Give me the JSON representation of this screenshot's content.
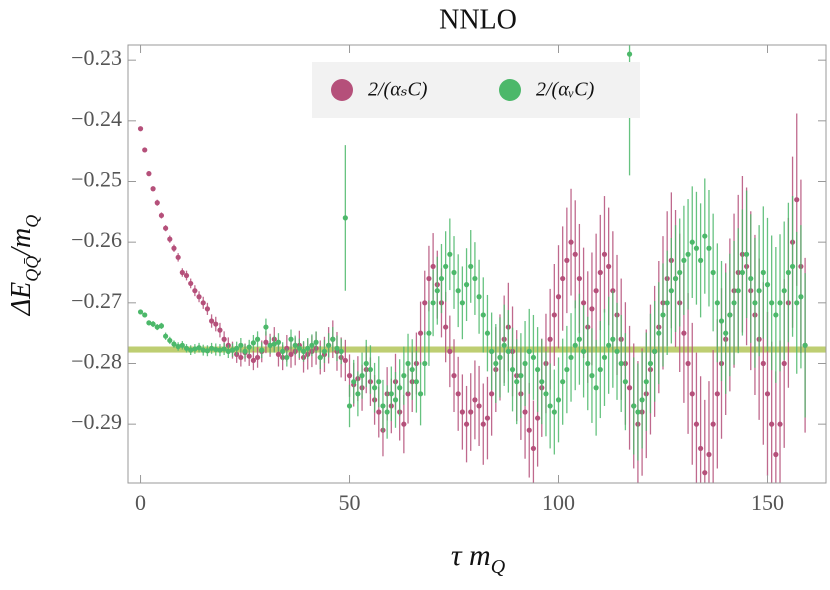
{
  "chart_data": {
    "type": "errorbar-scatter",
    "title": "NNLO",
    "xlabel_parts": [
      "τ m",
      "Q"
    ],
    "ylabel_parts": [
      "ΔE",
      "QQ̄",
      "/m",
      "Q"
    ],
    "xlim": [
      -3,
      164
    ],
    "ylim": [
      -0.2997,
      -0.2275
    ],
    "xticks": [
      0,
      50,
      100,
      150
    ],
    "yticks": [
      {
        "value": -0.29,
        "label": "−0.29"
      },
      {
        "value": -0.28,
        "label": "−0.28"
      },
      {
        "value": -0.27,
        "label": "−0.27"
      },
      {
        "value": -0.26,
        "label": "−0.26"
      },
      {
        "value": -0.25,
        "label": "−0.25"
      },
      {
        "value": -0.24,
        "label": "−0.24"
      },
      {
        "value": -0.23,
        "label": "−0.23"
      }
    ],
    "band": {
      "range": [
        -0.2782,
        -0.2772
      ],
      "color": "#b3c659"
    },
    "legend": "top",
    "x": [
      0,
      1,
      2,
      3,
      4,
      5,
      6,
      7,
      8,
      9,
      10,
      11,
      12,
      13,
      14,
      15,
      16,
      17,
      18,
      19,
      20,
      21,
      22,
      23,
      24,
      25,
      26,
      27,
      28,
      29,
      30,
      31,
      32,
      33,
      34,
      35,
      36,
      37,
      38,
      39,
      40,
      41,
      42,
      43,
      44,
      45,
      46,
      47,
      48,
      49,
      50,
      51,
      52,
      53,
      54,
      55,
      56,
      57,
      58,
      59,
      60,
      61,
      62,
      63,
      64,
      65,
      66,
      67,
      68,
      69,
      70,
      71,
      72,
      73,
      74,
      75,
      76,
      77,
      78,
      79,
      80,
      81,
      82,
      83,
      84,
      85,
      86,
      87,
      88,
      89,
      90,
      91,
      92,
      93,
      94,
      95,
      96,
      97,
      98,
      99,
      100,
      101,
      102,
      103,
      104,
      105,
      106,
      107,
      108,
      109,
      110,
      111,
      112,
      113,
      114,
      115,
      116,
      117,
      118,
      119,
      120,
      121,
      122,
      123,
      124,
      125,
      126,
      127,
      128,
      129,
      130,
      131,
      132,
      133,
      134,
      135,
      136,
      137,
      138,
      139,
      140,
      141,
      142,
      143,
      144,
      145,
      146,
      147,
      148,
      149,
      150,
      151,
      152,
      153,
      154,
      155,
      156,
      157,
      158,
      159
    ],
    "series": [
      {
        "name": "2/(αₛC)",
        "color": "#b5507a",
        "values": [
          -0.2413,
          -0.2448,
          -0.2487,
          -0.2512,
          -0.2535,
          -0.2556,
          -0.2577,
          -0.2595,
          -0.261,
          -0.2625,
          -0.265,
          -0.2655,
          -0.2668,
          -0.268,
          -0.269,
          -0.27,
          -0.271,
          -0.273,
          -0.2735,
          -0.2745,
          -0.276,
          -0.277,
          -0.2778,
          -0.2785,
          -0.279,
          -0.2782,
          -0.2788,
          -0.2795,
          -0.279,
          -0.278,
          -0.2765,
          -0.277,
          -0.276,
          -0.2785,
          -0.279,
          -0.2775,
          -0.2785,
          -0.278,
          -0.277,
          -0.279,
          -0.2785,
          -0.278,
          -0.2775,
          -0.279,
          -0.2785,
          -0.277,
          -0.276,
          -0.278,
          -0.279,
          -0.2795,
          -0.282,
          -0.2835,
          -0.2825,
          -0.284,
          -0.281,
          -0.283,
          -0.286,
          -0.288,
          -0.291,
          -0.285,
          -0.287,
          -0.283,
          -0.288,
          -0.29,
          -0.285,
          -0.283,
          -0.28,
          -0.275,
          -0.27,
          -0.266,
          -0.264,
          -0.267,
          -0.27,
          -0.274,
          -0.278,
          -0.282,
          -0.285,
          -0.288,
          -0.29,
          -0.288,
          -0.286,
          -0.287,
          -0.29,
          -0.289,
          -0.285,
          -0.281,
          -0.279,
          -0.276,
          -0.274,
          -0.278,
          -0.282,
          -0.285,
          -0.288,
          -0.291,
          -0.294,
          -0.289,
          -0.284,
          -0.28,
          -0.276,
          -0.272,
          -0.269,
          -0.266,
          -0.263,
          -0.26,
          -0.262,
          -0.266,
          -0.27,
          -0.274,
          -0.271,
          -0.268,
          -0.265,
          -0.262,
          -0.264,
          -0.268,
          -0.272,
          -0.276,
          -0.28,
          -0.284,
          -0.287,
          -0.29,
          -0.288,
          -0.285,
          -0.281,
          -0.278,
          -0.274,
          -0.27,
          -0.266,
          -0.263,
          -0.266,
          -0.27,
          -0.275,
          -0.28,
          -0.285,
          -0.29,
          -0.294,
          -0.298,
          -0.295,
          -0.29,
          -0.285,
          -0.28,
          -0.276,
          -0.272,
          -0.268,
          -0.265,
          -0.262,
          -0.264,
          -0.268,
          -0.272,
          -0.276,
          -0.28,
          -0.285,
          -0.29,
          -0.295,
          -0.29,
          -0.28,
          -0.27,
          -0.26,
          -0.253,
          -0.264,
          -0.277
        ],
        "errors": [
          0.0003,
          0.0003,
          0.0004,
          0.0004,
          0.0005,
          0.0005,
          0.0005,
          0.0006,
          0.0006,
          0.0007,
          0.0007,
          0.0008,
          0.0008,
          0.0009,
          0.0009,
          0.001,
          0.001,
          0.0011,
          0.0012,
          0.0012,
          0.0013,
          0.0013,
          0.0014,
          0.0014,
          0.0015,
          0.0015,
          0.0016,
          0.0016,
          0.0017,
          0.0018,
          0.0018,
          0.0019,
          0.002,
          0.002,
          0.0021,
          0.0022,
          0.0022,
          0.0023,
          0.0024,
          0.0025,
          0.0025,
          0.0026,
          0.0027,
          0.0028,
          0.0029,
          0.003,
          0.0031,
          0.0032,
          0.0033,
          0.0034,
          0.0035,
          0.0036,
          0.0037,
          0.0038,
          0.0039,
          0.004,
          0.0041,
          0.0042,
          0.0043,
          0.0044,
          0.0045,
          0.0046,
          0.0047,
          0.0048,
          0.0049,
          0.005,
          0.0051,
          0.0052,
          0.0053,
          0.0054,
          0.0055,
          0.0056,
          0.0057,
          0.0058,
          0.0059,
          0.006,
          0.0061,
          0.0062,
          0.0063,
          0.0064,
          0.0065,
          0.0066,
          0.0067,
          0.0068,
          0.0069,
          0.007,
          0.0071,
          0.0072,
          0.0073,
          0.0074,
          0.0075,
          0.0076,
          0.0077,
          0.0078,
          0.0079,
          0.008,
          0.0081,
          0.0082,
          0.0083,
          0.0084,
          0.0085,
          0.0086,
          0.0087,
          0.0088,
          0.0089,
          0.009,
          0.0091,
          0.0092,
          0.0093,
          0.0094,
          0.0095,
          0.0096,
          0.0097,
          0.0098,
          0.0099,
          0.01,
          0.0101,
          0.0102,
          0.0103,
          0.0104,
          0.0105,
          0.0106,
          0.0107,
          0.0108,
          0.0109,
          0.011,
          0.0111,
          0.0112,
          0.0113,
          0.0114,
          0.0115,
          0.0116,
          0.0117,
          0.0118,
          0.0119,
          0.012,
          0.0121,
          0.0122,
          0.0123,
          0.0124,
          0.0125,
          0.0126,
          0.0127,
          0.0128,
          0.0129,
          0.013,
          0.0131,
          0.0132,
          0.0133,
          0.0134,
          0.0135,
          0.0136,
          0.0137,
          0.0138,
          0.0139,
          0.014,
          0.0141,
          0.0142,
          0.0143,
          0.0144
        ]
      },
      {
        "name": "2/(αᵥC)",
        "color": "#4cb86a",
        "values": [
          -0.2715,
          -0.272,
          -0.2733,
          -0.2735,
          -0.274,
          -0.2738,
          -0.2755,
          -0.2762,
          -0.2768,
          -0.2772,
          -0.277,
          -0.2775,
          -0.2778,
          -0.2776,
          -0.2774,
          -0.2778,
          -0.2779,
          -0.2775,
          -0.2777,
          -0.2778,
          -0.2776,
          -0.278,
          -0.2778,
          -0.2775,
          -0.277,
          -0.278,
          -0.2773,
          -0.2766,
          -0.276,
          -0.2778,
          -0.274,
          -0.277,
          -0.2768,
          -0.2765,
          -0.278,
          -0.279,
          -0.276,
          -0.277,
          -0.2775,
          -0.278,
          -0.2775,
          -0.277,
          -0.2765,
          -0.279,
          -0.278,
          -0.277,
          -0.276,
          -0.2775,
          -0.278,
          -0.256,
          -0.287,
          -0.283,
          -0.285,
          -0.282,
          -0.28,
          -0.281,
          -0.284,
          -0.283,
          -0.287,
          -0.288,
          -0.285,
          -0.286,
          -0.284,
          -0.282,
          -0.28,
          -0.281,
          -0.283,
          -0.285,
          -0.28,
          -0.275,
          -0.27,
          -0.268,
          -0.266,
          -0.264,
          -0.262,
          -0.265,
          -0.268,
          -0.27,
          -0.267,
          -0.264,
          -0.266,
          -0.269,
          -0.272,
          -0.275,
          -0.278,
          -0.28,
          -0.279,
          -0.277,
          -0.278,
          -0.281,
          -0.283,
          -0.282,
          -0.28,
          -0.278,
          -0.279,
          -0.281,
          -0.283,
          -0.285,
          -0.287,
          -0.288,
          -0.286,
          -0.283,
          -0.281,
          -0.279,
          -0.277,
          -0.276,
          -0.278,
          -0.28,
          -0.282,
          -0.284,
          -0.281,
          -0.279,
          -0.277,
          -0.276,
          -0.278,
          -0.28,
          -0.283,
          -0.229,
          -0.287,
          -0.288,
          -0.286,
          -0.283,
          -0.28,
          -0.278,
          -0.275,
          -0.272,
          -0.27,
          -0.268,
          -0.266,
          -0.265,
          -0.263,
          -0.262,
          -0.26,
          -0.261,
          -0.263,
          -0.259,
          -0.261,
          -0.265,
          -0.27,
          -0.273,
          -0.275,
          -0.272,
          -0.27,
          -0.268,
          -0.265,
          -0.262,
          -0.266,
          -0.27,
          -0.268,
          -0.265,
          -0.267,
          -0.27,
          -0.272,
          -0.27,
          -0.268,
          -0.265,
          -0.264,
          -0.27,
          -0.269,
          -0.277
        ],
        "errors": [
          0.0004,
          0.0004,
          0.0004,
          0.0005,
          0.0005,
          0.0005,
          0.0006,
          0.0006,
          0.0006,
          0.0007,
          0.0007,
          0.0007,
          0.0008,
          0.0008,
          0.0008,
          0.0009,
          0.0009,
          0.0009,
          0.001,
          0.001,
          0.001,
          0.0011,
          0.0011,
          0.0011,
          0.0012,
          0.0012,
          0.0012,
          0.0013,
          0.0013,
          0.0013,
          0.0014,
          0.0014,
          0.0014,
          0.0015,
          0.0015,
          0.0015,
          0.0016,
          0.0016,
          0.0016,
          0.0017,
          0.0017,
          0.0018,
          0.0018,
          0.0019,
          0.0019,
          0.002,
          0.002,
          0.0021,
          0.0021,
          0.012,
          0.0035,
          0.0036,
          0.0037,
          0.0038,
          0.0039,
          0.004,
          0.0041,
          0.0042,
          0.0043,
          0.0044,
          0.0045,
          0.0046,
          0.0047,
          0.0048,
          0.0049,
          0.005,
          0.0051,
          0.0052,
          0.0053,
          0.0054,
          0.0055,
          0.0056,
          0.0057,
          0.0058,
          0.0059,
          0.006,
          0.006,
          0.006,
          0.006,
          0.006,
          0.006,
          0.0061,
          0.0062,
          0.0063,
          0.0064,
          0.0065,
          0.0066,
          0.0067,
          0.0068,
          0.0069,
          0.007,
          0.007,
          0.007,
          0.007,
          0.007,
          0.007,
          0.007,
          0.007,
          0.007,
          0.007,
          0.007,
          0.0071,
          0.0072,
          0.0073,
          0.0074,
          0.0075,
          0.0076,
          0.0077,
          0.0078,
          0.0079,
          0.008,
          0.008,
          0.008,
          0.008,
          0.008,
          0.008,
          0.008,
          0.02,
          0.008,
          0.008,
          0.008,
          0.0081,
          0.0082,
          0.0083,
          0.0084,
          0.0085,
          0.0086,
          0.0087,
          0.0088,
          0.0089,
          0.009,
          0.0091,
          0.0092,
          0.0093,
          0.0094,
          0.0095,
          0.0096,
          0.0097,
          0.0098,
          0.0099,
          0.01,
          0.0101,
          0.0102,
          0.0103,
          0.0104,
          0.0105,
          0.0106,
          0.0107,
          0.0108,
          0.0109,
          0.011,
          0.0111,
          0.0112,
          0.0113,
          0.0114,
          0.0115,
          0.0116,
          0.0117,
          0.0118,
          0.0119
        ]
      }
    ]
  }
}
